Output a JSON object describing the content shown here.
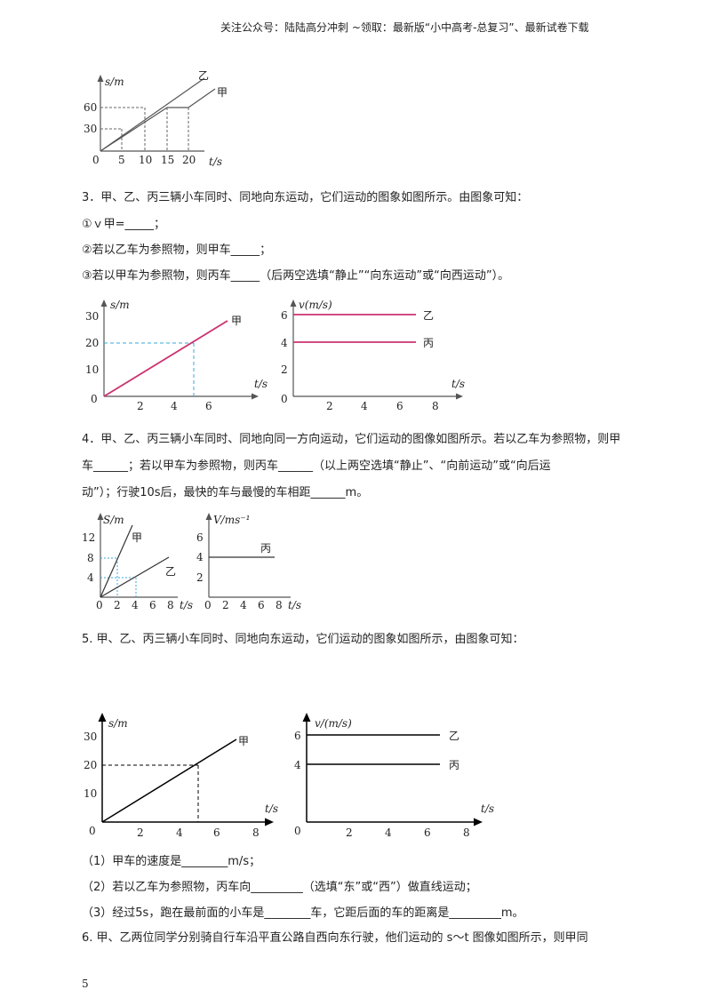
{
  "header": {
    "text": "关注公众号：陆陆高分冲刺 ~领取：最新版“小中高考-总复习”、最新试卷下载"
  },
  "fig1": {
    "ylabel": "s/m",
    "xlabel": "t/s",
    "yticks": [
      "60",
      "30"
    ],
    "xticks": [
      "0",
      "5",
      "10",
      "15",
      "20"
    ],
    "series": [
      "乙",
      "甲"
    ]
  },
  "q3": {
    "stem": "3．甲、乙、丙三辆小车同时、同地向东运动，它们运动的图象如图所示。由图象可知：",
    "l1": "①ｖ甲=_____；",
    "l2": "②若以乙车为参照物，则甲车_____；",
    "l3": "③若以甲车为参照物，则丙车_____（后两空选填“静止”“向东运动”或“向西运动”）。",
    "left": {
      "ylabel": "s/m",
      "xlabel": "t/s",
      "yticks": [
        "30",
        "20",
        "10",
        "0"
      ],
      "xticks": [
        "2",
        "4",
        "6"
      ],
      "series": "甲"
    },
    "right": {
      "ylabel": "v(m/s)",
      "xlabel": "t/s",
      "yticks": [
        "6",
        "4",
        "2",
        "0"
      ],
      "xticks": [
        "2",
        "4",
        "6",
        "8"
      ],
      "series": [
        "乙",
        "丙"
      ]
    }
  },
  "q4": {
    "l1": "4．甲、乙、丙三辆小车同时、同地向同一方向运动，它们运动的图像如图所示。若以乙车为参照物，则甲",
    "l2": "车______；若以甲车为参照物，则丙车______（以上两空选填“静止”、“向前运动”或“向后运",
    "l3": "动”）；行驶10s后，最快的车与最慢的车相距______m。",
    "left": {
      "ylabel": "S/m",
      "xlabel": "t/s",
      "yticks": [
        "12",
        "8",
        "4"
      ],
      "xticks": [
        "0",
        "2",
        "4",
        "6",
        "8"
      ],
      "series": [
        "甲",
        "乙"
      ]
    },
    "right": {
      "ylabel": "V/ms⁻¹",
      "xlabel": "t/s",
      "yticks": [
        "6",
        "4",
        "2"
      ],
      "xticks": [
        "0",
        "2",
        "4",
        "6",
        "8"
      ],
      "series": "丙"
    }
  },
  "q5": {
    "stem": "5. 甲、乙、丙三辆小车同时、同地向东运动，它们运动的图象如图所示，由图象可知：",
    "left": {
      "ylabel": "s/m",
      "xlabel": "t/s",
      "yticks": [
        "30",
        "20",
        "10",
        "0"
      ],
      "xticks": [
        "2",
        "4",
        "6",
        "8"
      ],
      "series": "甲"
    },
    "right": {
      "ylabel": "v/(m/s)",
      "xlabel": "t/s",
      "yticks": [
        "6",
        "4",
        "0"
      ],
      "xticks": [
        "2",
        "4",
        "6",
        "8"
      ],
      "series": [
        "乙",
        "丙"
      ]
    },
    "p1": "（1）甲车的速度是________m/s；",
    "p2": "（2）若以乙车为参照物，丙车向_________（选填“东”或“西”）做直线运动；",
    "p3": "（3）经过5s，跑在最前面的小车是________车，它距后面的车的距离是_________m。"
  },
  "q6": {
    "stem": "6. 甲、乙两位同学分别骑自行车沿平直公路自西向东行驶，他们运动的 s～t 图像如图所示，则甲同"
  },
  "page_number": "5",
  "colors": {
    "magenta": "#cc3370",
    "cyan": "#3aa8d8",
    "grey": "#555555"
  }
}
